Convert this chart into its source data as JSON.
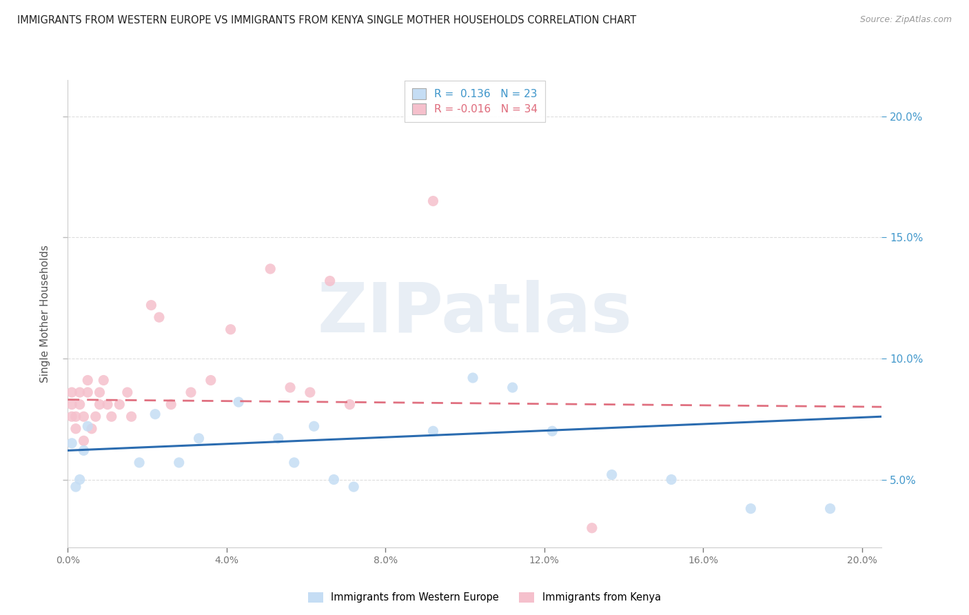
{
  "title": "IMMIGRANTS FROM WESTERN EUROPE VS IMMIGRANTS FROM KENYA SINGLE MOTHER HOUSEHOLDS CORRELATION CHART",
  "source": "Source: ZipAtlas.com",
  "ylabel": "Single Mother Households",
  "xlim": [
    0.0,
    0.205
  ],
  "ylim": [
    0.022,
    0.215
  ],
  "yticks": [
    0.05,
    0.1,
    0.15,
    0.2
  ],
  "xticks": [
    0.0,
    0.04,
    0.08,
    0.12,
    0.16,
    0.2
  ],
  "legend_line1": "R =  0.136   N = 23",
  "legend_line2": "R = -0.016   N = 34",
  "color_blue": "#c5ddf4",
  "color_pink": "#f5c0cc",
  "color_blue_line": "#2b6cb0",
  "color_pink_line": "#e07080",
  "color_right_axis": "#4499cc",
  "watermark_color": "#e8eef5",
  "we_x": [
    0.001,
    0.002,
    0.003,
    0.004,
    0.005,
    0.018,
    0.022,
    0.028,
    0.033,
    0.043,
    0.053,
    0.057,
    0.062,
    0.067,
    0.072,
    0.092,
    0.102,
    0.112,
    0.122,
    0.137,
    0.152,
    0.172,
    0.192
  ],
  "we_y": [
    0.065,
    0.047,
    0.05,
    0.062,
    0.072,
    0.057,
    0.077,
    0.057,
    0.067,
    0.082,
    0.067,
    0.057,
    0.072,
    0.05,
    0.047,
    0.07,
    0.092,
    0.088,
    0.07,
    0.052,
    0.05,
    0.038,
    0.038
  ],
  "ke_x": [
    0.001,
    0.001,
    0.001,
    0.002,
    0.002,
    0.003,
    0.003,
    0.004,
    0.004,
    0.005,
    0.005,
    0.006,
    0.007,
    0.008,
    0.008,
    0.009,
    0.01,
    0.011,
    0.013,
    0.015,
    0.016,
    0.021,
    0.023,
    0.026,
    0.031,
    0.036,
    0.041,
    0.051,
    0.056,
    0.061,
    0.066,
    0.071,
    0.092,
    0.132
  ],
  "ke_y": [
    0.076,
    0.081,
    0.086,
    0.071,
    0.076,
    0.081,
    0.086,
    0.076,
    0.066,
    0.086,
    0.091,
    0.071,
    0.076,
    0.081,
    0.086,
    0.091,
    0.081,
    0.076,
    0.081,
    0.086,
    0.076,
    0.122,
    0.117,
    0.081,
    0.086,
    0.091,
    0.112,
    0.137,
    0.088,
    0.086,
    0.132,
    0.081,
    0.165,
    0.03
  ],
  "blue_line_x": [
    0.0,
    0.205
  ],
  "blue_line_y": [
    0.062,
    0.076
  ],
  "pink_line_x": [
    0.0,
    0.205
  ],
  "pink_line_y": [
    0.083,
    0.08
  ],
  "grid_color": "#dddddd",
  "bottom_legend_we": "Immigrants from Western Europe",
  "bottom_legend_ke": "Immigrants from Kenya"
}
